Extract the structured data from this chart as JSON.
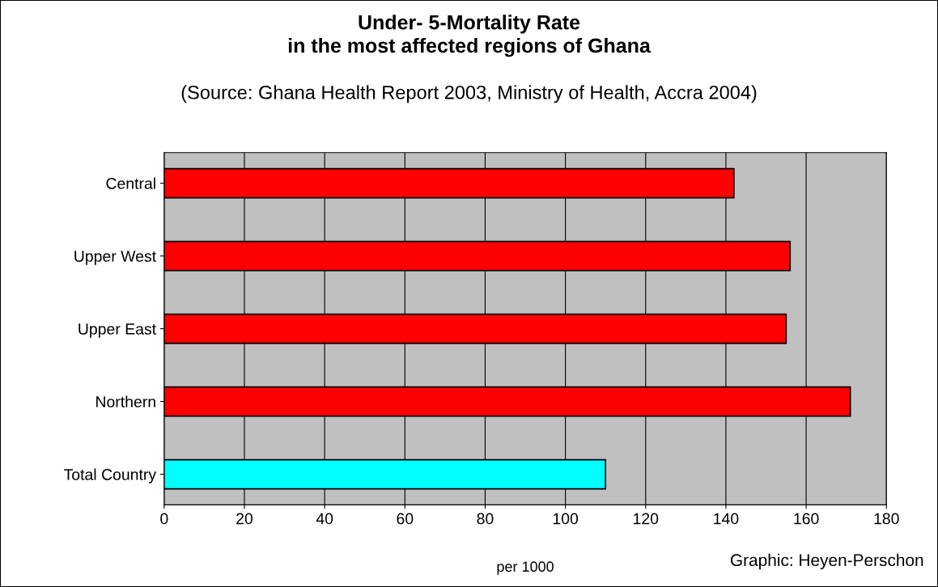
{
  "chart_data": {
    "type": "bar",
    "orientation": "horizontal",
    "title": "Under- 5-Mortality Rate\nin the most affected regions of Ghana",
    "subtitle": "(Source: Ghana Health Report 2003, Ministry of Health, Accra 2004)",
    "categories": [
      "Central",
      "Upper West",
      "Upper East",
      "Northern",
      "Total Country"
    ],
    "values": [
      142,
      156,
      155,
      171,
      110
    ],
    "colors": [
      "#ff0000",
      "#ff0000",
      "#ff0000",
      "#ff0000",
      "#00ffff"
    ],
    "xlim": [
      0,
      180
    ],
    "xticks": [
      0,
      20,
      40,
      60,
      80,
      100,
      120,
      140,
      160,
      180
    ],
    "xlabel": "per 1000",
    "grid": "x",
    "annotations": [
      "Graphic: Heyen-Perschon"
    ]
  }
}
